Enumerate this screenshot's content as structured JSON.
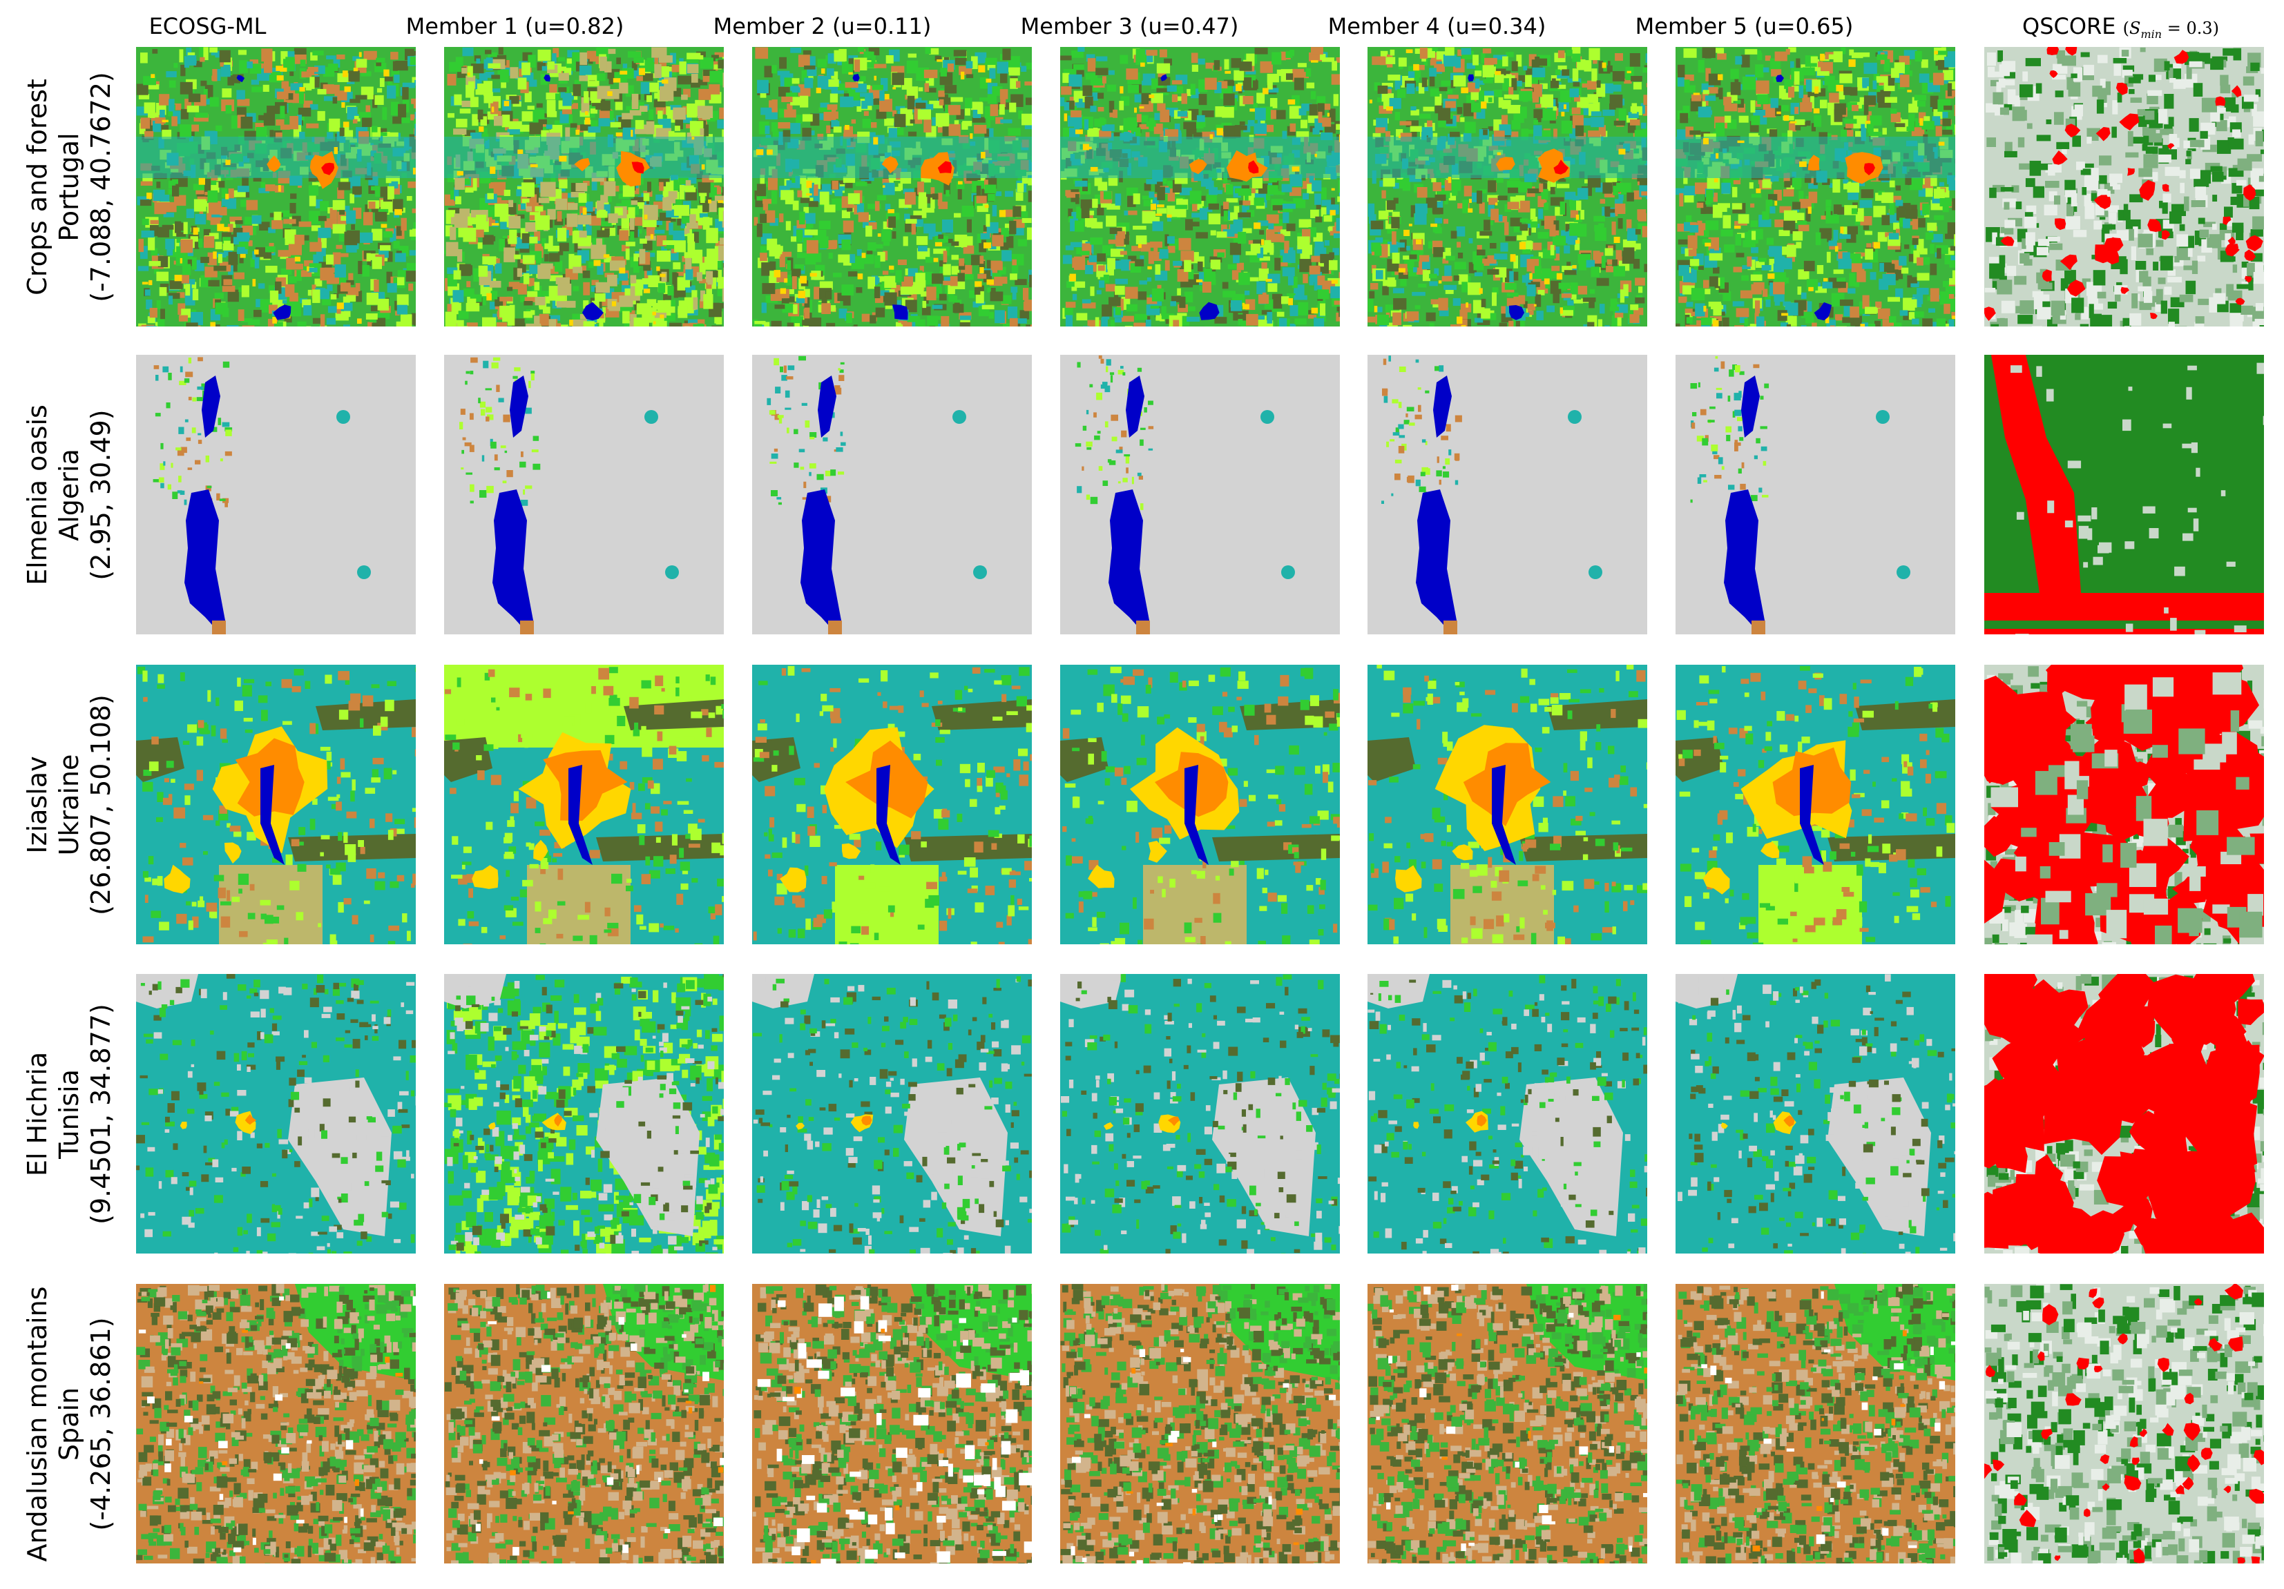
{
  "figure": {
    "columns": [
      {
        "label": "ECOSG-ML"
      },
      {
        "label": "Member 1 (u=0.82)"
      },
      {
        "label": "Member 2 (u=0.11)"
      },
      {
        "label": "Member 3 (u=0.47)"
      },
      {
        "label": "Member 4 (u=0.34)"
      },
      {
        "label": "Member 5 (u=0.65)"
      },
      {
        "label": "QSCORE",
        "math": "(S_min = 0.3)"
      }
    ],
    "rows": [
      {
        "line1": "Crops and forest",
        "line2": "Portugal",
        "line3": "(-7.088, 40.7672)"
      },
      {
        "line1": "Elmenia oasis",
        "line2": "Algeria",
        "line3": "(2.95, 30.49)"
      },
      {
        "line1": "Iziaslav",
        "line2": "Ukraine",
        "line3": "(26.807, 50.108)"
      },
      {
        "line1": "El Hichria",
        "line2": "Tunisia",
        "line3": "(9.4501, 34.877)"
      },
      {
        "line1": "Andalusian montains",
        "line2": "Spain",
        "line3": "(-4.265, 36.861)"
      }
    ]
  },
  "colors": {
    "crops_green": "#3cb53c",
    "crops_bright": "#32cd32",
    "forest_dark": "#556b2f",
    "grassland_teal": "#20b2aa",
    "bare_grey": "#d3d3d3",
    "water_blue": "#0000c8",
    "urban_orange": "#ff8c00",
    "urban_yellow": "#ffd700",
    "urban_red": "#ff0000",
    "shrub_brown": "#cd853f",
    "light_green": "#adff2f",
    "khaki": "#bdb76b",
    "tan": "#d2b48c",
    "snow_white": "#ffffff",
    "qscore_red": "#ff0000",
    "qscore_green": "#228b22",
    "qscore_light": "#c9d8c9"
  }
}
